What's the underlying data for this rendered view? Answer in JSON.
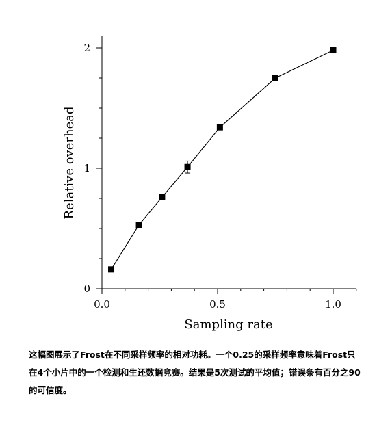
{
  "chart_data": {
    "type": "line",
    "xlabel": "Sampling rate",
    "ylabel": "Relative overhead",
    "xlim": [
      0,
      1.1
    ],
    "ylim": [
      0,
      2.1
    ],
    "xticks": [
      "0.0",
      "0.5",
      "1.0"
    ],
    "yticks": [
      "0",
      "1",
      "2"
    ],
    "grid": false,
    "legend": "none",
    "series": [
      {
        "x": [
          0.04,
          0.16,
          0.26,
          0.37,
          0.51,
          0.75,
          1.0
        ],
        "y": [
          0.16,
          0.53,
          0.76,
          1.01,
          1.34,
          1.75,
          1.98
        ],
        "err": [
          0,
          0,
          0,
          0.05,
          0,
          0,
          0
        ]
      }
    ]
  },
  "caption": "这幅图展示了Frost在不同采样频率的相对功耗。一个0.25的采样频率意味着Frost只在4个小片中的一个检测和生还数据竞赛。结果是5次测试的平均值；错误条有百分之90的可信度。"
}
